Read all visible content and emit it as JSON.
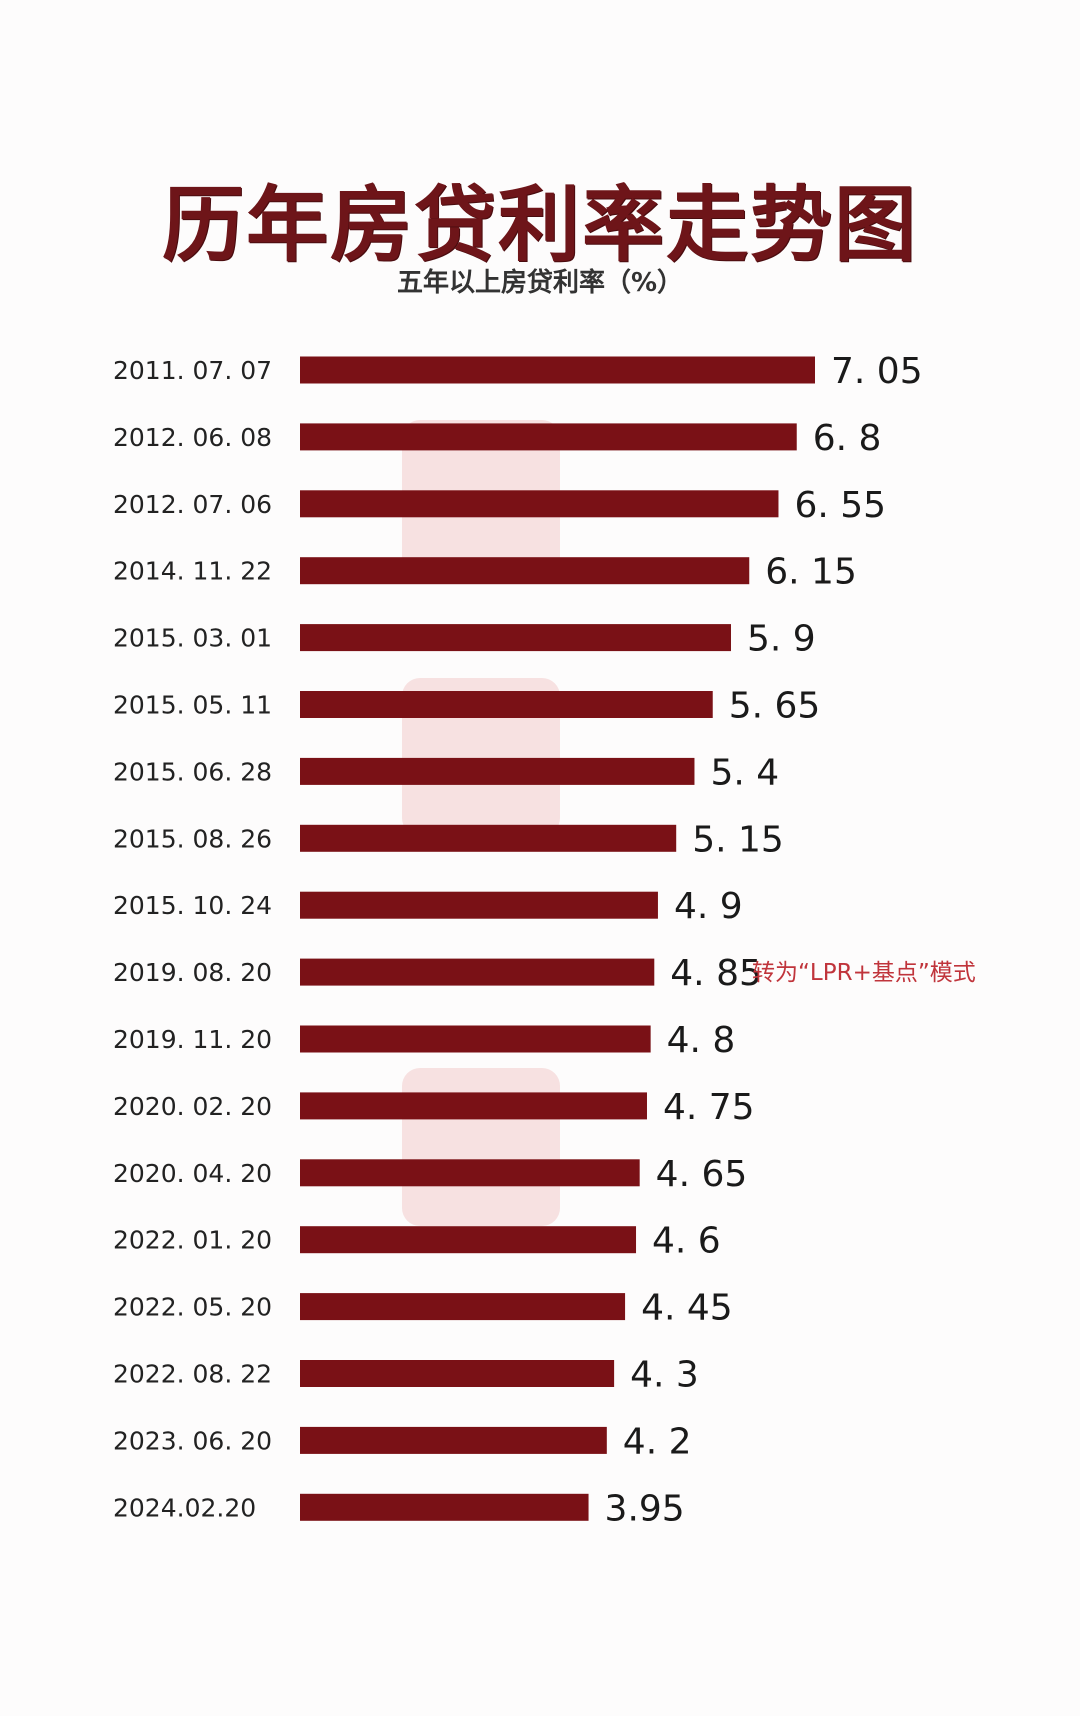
{
  "chart_data": {
    "type": "bar",
    "orientation": "horizontal",
    "title": "历年房贷利率走势图",
    "subtitle": "五年以上房贷利率（%）",
    "categories": [
      "2011. 07. 07",
      "2012. 06. 08",
      "2012. 07. 06",
      "2014. 11. 22",
      "2015. 03. 01",
      "2015. 05. 11",
      "2015. 06. 28",
      "2015. 08. 26",
      "2015. 10. 24",
      "2019. 08. 20",
      "2019. 11. 20",
      "2020. 02. 20",
      "2020. 04. 20",
      "2022. 01. 20",
      "2022. 05. 20",
      "2022. 08. 22",
      "2023. 06. 20",
      "2024.02.20"
    ],
    "values": [
      7.05,
      6.8,
      6.55,
      6.15,
      5.9,
      5.65,
      5.4,
      5.15,
      4.9,
      4.85,
      4.8,
      4.75,
      4.65,
      4.6,
      4.45,
      4.3,
      4.2,
      3.95
    ],
    "value_labels": [
      "7. 05",
      "6. 8",
      "6. 55",
      "6. 15",
      "5. 9",
      "5. 65",
      "5. 4",
      "5. 15",
      "4. 9",
      "4. 85",
      "4. 8",
      "4. 75",
      "4. 65",
      "4. 6",
      "4. 45",
      "4. 3",
      "4. 2",
      "3.95"
    ],
    "annotation": {
      "index": 9,
      "text": "转为“LPR+基点”模式",
      "color": "#c0343b"
    },
    "bar_color": "#7a1116",
    "title_color": "#6e1519",
    "grid": false
  }
}
